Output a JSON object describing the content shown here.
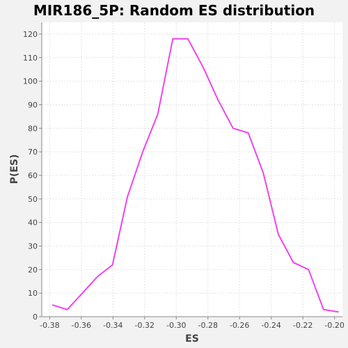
{
  "chart_data": {
    "type": "line",
    "title": "MIR186_5P: Random ES distribution",
    "xlabel": "ES",
    "ylabel": "P(ES)",
    "xlim": [
      -0.385,
      -0.195
    ],
    "ylim": [
      0,
      125
    ],
    "x_ticks": [
      -0.38,
      -0.36,
      -0.34,
      -0.32,
      -0.3,
      -0.28,
      -0.26,
      -0.24,
      -0.22,
      -0.2
    ],
    "x_tick_labels": [
      "-0.38",
      "-0.36",
      "-0.34",
      "-0.32",
      "-0.30",
      "-0.28",
      "-0.26",
      "-0.24",
      "-0.22",
      "-0.20"
    ],
    "y_ticks": [
      0,
      10,
      20,
      30,
      40,
      50,
      60,
      70,
      80,
      90,
      100,
      110,
      120
    ],
    "y_tick_labels": [
      "0",
      "10",
      "20",
      "30",
      "40",
      "50",
      "60",
      "70",
      "80",
      "90",
      "100",
      "110",
      "120"
    ],
    "grid": true,
    "background": "#ffffff",
    "grid_color": "#e3e3e3",
    "series": [
      {
        "color": "#ee44ee",
        "x": [
          -0.3784,
          -0.3689,
          -0.3593,
          -0.3498,
          -0.3403,
          -0.3308,
          -0.3212,
          -0.3117,
          -0.3022,
          -0.2927,
          -0.2831,
          -0.2736,
          -0.2641,
          -0.2545,
          -0.245,
          -0.2355,
          -0.226,
          -0.2164,
          -0.2069,
          -0.1974
        ],
        "y": [
          5,
          3,
          10,
          17,
          22,
          51,
          70,
          86,
          118,
          118,
          106,
          92,
          80,
          78,
          61,
          35,
          23,
          20,
          3,
          2
        ]
      }
    ]
  }
}
